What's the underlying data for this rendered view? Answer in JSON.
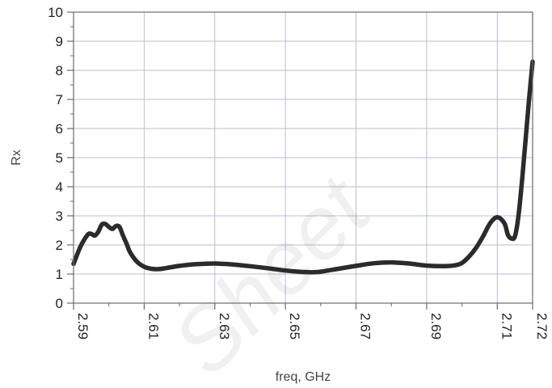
{
  "chart_data": {
    "type": "line",
    "title": "",
    "xlabel": "freq, GHz",
    "ylabel": "Rx",
    "xlim": [
      2.59,
      2.72
    ],
    "ylim": [
      0,
      10
    ],
    "x_ticks": [
      "2.59",
      "2.61",
      "2.63",
      "2.65",
      "2.67",
      "2.69",
      "2.71",
      "2.72"
    ],
    "x_tick_values": [
      2.59,
      2.61,
      2.63,
      2.65,
      2.67,
      2.69,
      2.71,
      2.72
    ],
    "y_ticks": [
      "0",
      "1",
      "2",
      "3",
      "4",
      "5",
      "6",
      "7",
      "8",
      "9",
      "10"
    ],
    "grid": true,
    "watermark": "Sheet",
    "series": [
      {
        "color": "#2b2b2b",
        "x": [
          2.59,
          2.592,
          2.594,
          2.595,
          2.596,
          2.597,
          2.598,
          2.599,
          2.6,
          2.601,
          2.602,
          2.603,
          2.604,
          2.605,
          2.606,
          2.608,
          2.61,
          2.612,
          2.614,
          2.616,
          2.62,
          2.625,
          2.63,
          2.635,
          2.64,
          2.645,
          2.65,
          2.655,
          2.658,
          2.66,
          2.665,
          2.67,
          2.675,
          2.68,
          2.685,
          2.69,
          2.695,
          2.698,
          2.7,
          2.702,
          2.704,
          2.706,
          2.708,
          2.71,
          2.712,
          2.713,
          2.714,
          2.715,
          2.716,
          2.717,
          2.718,
          2.719,
          2.72
        ],
        "y": [
          1.35,
          1.95,
          2.35,
          2.38,
          2.32,
          2.45,
          2.7,
          2.72,
          2.62,
          2.55,
          2.65,
          2.62,
          2.32,
          2.05,
          1.75,
          1.42,
          1.25,
          1.18,
          1.17,
          1.2,
          1.28,
          1.34,
          1.36,
          1.33,
          1.27,
          1.2,
          1.12,
          1.07,
          1.06,
          1.08,
          1.18,
          1.28,
          1.37,
          1.4,
          1.36,
          1.29,
          1.27,
          1.3,
          1.38,
          1.6,
          1.9,
          2.3,
          2.75,
          2.95,
          2.75,
          2.35,
          2.22,
          2.3,
          3.0,
          4.2,
          5.6,
          7.0,
          8.3
        ]
      }
    ]
  }
}
